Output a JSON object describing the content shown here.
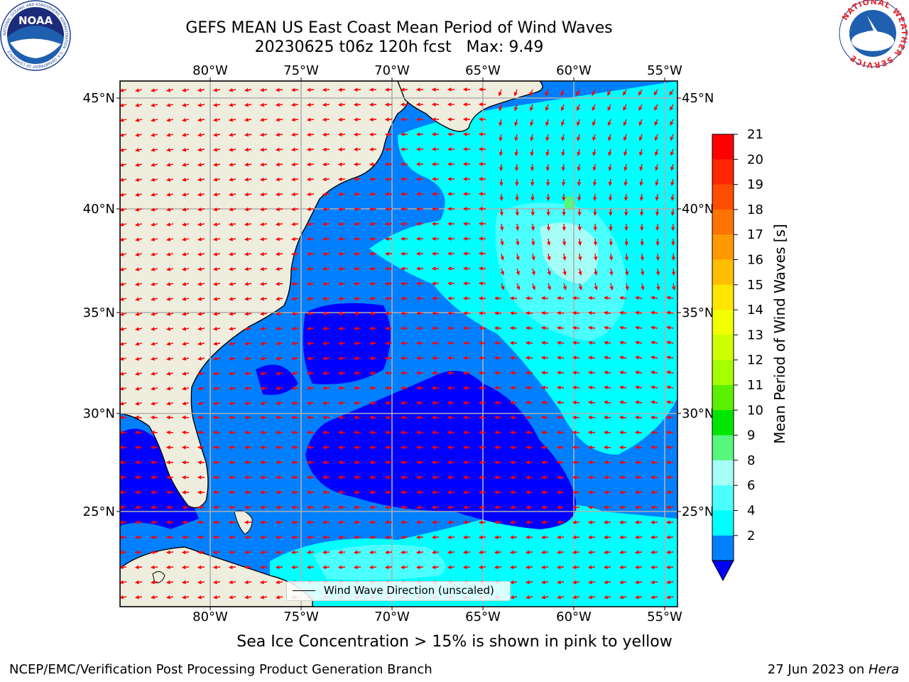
{
  "header": {
    "title": "GEFS MEAN US East Coast Mean Period of Wind Waves",
    "subtitle_line": "20230625 t06z 120h fcst   Max: 9.49"
  },
  "logos": {
    "left_logo_text": "NOAA",
    "left_logo_ring": "NATIONAL OCEANIC AND ATMOSPHERIC ADMINISTRATION · U.S. DEPARTMENT OF COMMERCE",
    "right_logo_ring": "NATIONAL WEATHER SERVICE"
  },
  "map": {
    "lon_labels": [
      "80°W",
      "75°W",
      "70°W",
      "65°W",
      "60°W",
      "55°W"
    ],
    "lat_labels": [
      "45°N",
      "40°N",
      "35°N",
      "30°N",
      "25°N"
    ],
    "legend_label": "Wind Wave Direction (unscaled)",
    "extent": {
      "lon_min": -85,
      "lon_max": -54.3,
      "lat_min": 20.4,
      "lat_max": 45.8
    },
    "colors": {
      "land": "#efedde",
      "grid": "#b0b0b0",
      "arrow": "#ff0000"
    }
  },
  "colorbar": {
    "label": "Mean Period of Wind Waves [s]",
    "ticks": [
      "21",
      "20",
      "19",
      "18",
      "17",
      "16",
      "15",
      "14",
      "13",
      "12",
      "11",
      "10",
      "9",
      "8",
      "6",
      "4",
      "2"
    ],
    "colors": [
      "#ff0000",
      "#ff2600",
      "#ff4d00",
      "#ff7300",
      "#ff9900",
      "#ffbf00",
      "#ffe600",
      "#f2ff00",
      "#ccff00",
      "#a6ff00",
      "#5cef00",
      "#00e600",
      "#56f77c",
      "#a5fff7",
      "#4cffff",
      "#00ffff",
      "#0080ff"
    ],
    "under_color": "#0000ff"
  },
  "footer": {
    "ice_note": "Sea Ice Concentration > 15% is shown in pink to yellow",
    "left": "NCEP/EMC/Verification Post Processing Product Generation Branch",
    "right_date": "27 Jun 2023 on ",
    "right_host": "Hera"
  }
}
